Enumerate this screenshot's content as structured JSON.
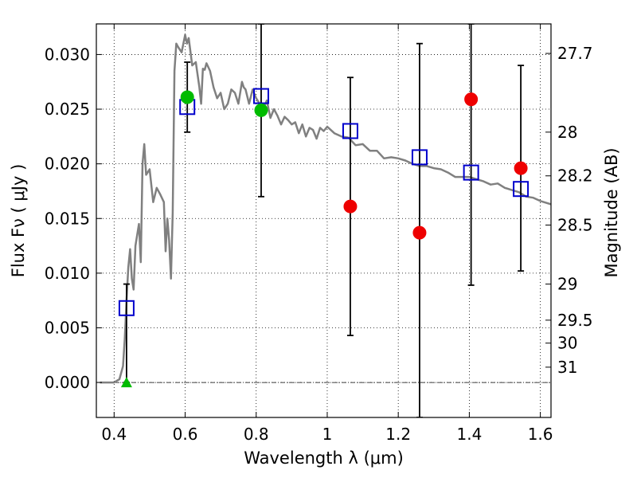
{
  "chart_data": {
    "type": "scatter",
    "xlabel": "Wavelength  λ (μm)",
    "ylabel": "Flux  Fν  ( μJy )",
    "y2label": "Magnitude (AB)",
    "xlim": [
      0.35,
      1.63
    ],
    "ylim": [
      -0.0032,
      0.0328
    ],
    "grid": true,
    "x_ticks": [
      0.4,
      0.6,
      0.8,
      1.0,
      1.2,
      1.4,
      1.6
    ],
    "x_tick_labels": [
      "0.4",
      "0.6",
      "0.8",
      "1",
      "1.2",
      "1.4",
      "1.6"
    ],
    "y_ticks": [
      0.0,
      0.005,
      0.01,
      0.015,
      0.02,
      0.025,
      0.03
    ],
    "y_tick_labels": [
      "0.000",
      "0.005",
      "0.010",
      "0.015",
      "0.020",
      "0.025",
      "0.030"
    ],
    "mag_ticks": [
      {
        "label": "27.7",
        "flux": 0.0301
      },
      {
        "label": "28",
        "flux": 0.0229
      },
      {
        "label": "28.2",
        "flux": 0.0189
      },
      {
        "label": "28.5",
        "flux": 0.0144
      },
      {
        "label": "29",
        "flux": 0.009
      },
      {
        "label": "29.5",
        "flux": 0.0057
      },
      {
        "label": "30",
        "flux": 0.0036
      },
      {
        "label": "31",
        "flux": 0.0014
      }
    ],
    "model_spectrum": {
      "color": "#808080",
      "x": [
        0.36,
        0.4,
        0.415,
        0.425,
        0.43,
        0.435,
        0.44,
        0.445,
        0.45,
        0.455,
        0.46,
        0.47,
        0.475,
        0.48,
        0.485,
        0.49,
        0.5,
        0.51,
        0.52,
        0.53,
        0.54,
        0.545,
        0.55,
        0.555,
        0.56,
        0.565,
        0.57,
        0.575,
        0.58,
        0.59,
        0.6,
        0.605,
        0.61,
        0.62,
        0.63,
        0.64,
        0.645,
        0.65,
        0.655,
        0.66,
        0.67,
        0.68,
        0.69,
        0.7,
        0.71,
        0.72,
        0.73,
        0.74,
        0.75,
        0.76,
        0.765,
        0.77,
        0.78,
        0.79,
        0.8,
        0.81,
        0.82,
        0.83,
        0.84,
        0.85,
        0.86,
        0.87,
        0.88,
        0.89,
        0.9,
        0.91,
        0.92,
        0.93,
        0.94,
        0.95,
        0.96,
        0.97,
        0.98,
        0.99,
        1.0,
        1.02,
        1.04,
        1.06,
        1.08,
        1.1,
        1.12,
        1.14,
        1.16,
        1.18,
        1.2,
        1.22,
        1.24,
        1.26,
        1.28,
        1.3,
        1.32,
        1.34,
        1.36,
        1.38,
        1.4,
        1.42,
        1.44,
        1.46,
        1.48,
        1.5,
        1.52,
        1.54,
        1.56,
        1.58,
        1.6,
        1.63
      ],
      "y": [
        0.0,
        0.0,
        0.0003,
        0.0015,
        0.004,
        0.0075,
        0.0105,
        0.0122,
        0.0095,
        0.0085,
        0.0125,
        0.0145,
        0.011,
        0.02,
        0.0218,
        0.019,
        0.0195,
        0.0165,
        0.0178,
        0.0172,
        0.0165,
        0.012,
        0.015,
        0.013,
        0.0095,
        0.0155,
        0.0285,
        0.031,
        0.0307,
        0.0302,
        0.0318,
        0.031,
        0.0315,
        0.029,
        0.0293,
        0.027,
        0.0255,
        0.0287,
        0.0286,
        0.0292,
        0.0285,
        0.027,
        0.026,
        0.0265,
        0.025,
        0.0255,
        0.0268,
        0.0265,
        0.0255,
        0.0275,
        0.027,
        0.0268,
        0.0255,
        0.0268,
        0.026,
        0.0255,
        0.025,
        0.0258,
        0.0242,
        0.025,
        0.0244,
        0.0236,
        0.0243,
        0.024,
        0.0236,
        0.0238,
        0.0228,
        0.0236,
        0.0225,
        0.0233,
        0.0231,
        0.0223,
        0.0233,
        0.023,
        0.0234,
        0.0228,
        0.0225,
        0.0224,
        0.0217,
        0.0218,
        0.0212,
        0.0212,
        0.0205,
        0.0206,
        0.0205,
        0.0203,
        0.02,
        0.0198,
        0.0198,
        0.0196,
        0.0195,
        0.0192,
        0.0188,
        0.0188,
        0.0188,
        0.0186,
        0.0184,
        0.0181,
        0.0182,
        0.0178,
        0.0176,
        0.0174,
        0.017,
        0.0169,
        0.0166,
        0.0163
      ]
    },
    "model_photometry": {
      "color": "#0000cc",
      "x": [
        0.435,
        0.606,
        0.814,
        1.065,
        1.26,
        1.405,
        1.545
      ],
      "y": [
        0.0068,
        0.0252,
        0.0262,
        0.023,
        0.0206,
        0.0192,
        0.0177
      ]
    },
    "detections": {
      "color": "#00bb00",
      "x": [
        0.606,
        0.814
      ],
      "y": [
        0.0261,
        0.0249
      ]
    },
    "detection_upper_limit": {
      "color": "#00bb00",
      "x": 0.435,
      "y": 0.0
    },
    "observed_low_sn": {
      "color": "#ee0000",
      "x": [
        1.065,
        1.26,
        1.405,
        1.545
      ],
      "y": [
        0.0161,
        0.0137,
        0.0259,
        0.0196
      ]
    },
    "error_bars": [
      {
        "x": 0.435,
        "lo": 0.0,
        "hi": 0.009
      },
      {
        "x": 0.606,
        "lo": 0.0229,
        "hi": 0.0293
      },
      {
        "x": 0.814,
        "lo": 0.017,
        "hi": 0.0328
      },
      {
        "x": 1.065,
        "lo": 0.0043,
        "hi": 0.0279
      },
      {
        "x": 1.26,
        "lo": -0.0032,
        "hi": 0.031
      },
      {
        "x": 1.405,
        "lo": 0.0089,
        "hi": 0.0328
      },
      {
        "x": 1.545,
        "lo": 0.0102,
        "hi": 0.029
      }
    ]
  }
}
